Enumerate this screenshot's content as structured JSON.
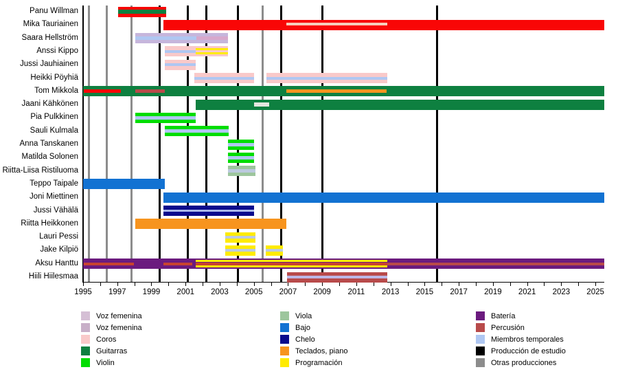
{
  "chart_data": {
    "type": "bar",
    "subtype": "gantt-timeline-band-members",
    "x_range": [
      1995,
      2025.5
    ],
    "x_ticks_labeled": [
      1995,
      1997,
      1999,
      2001,
      2003,
      2005,
      2007,
      2009,
      2011,
      2013,
      2015,
      2017,
      2019,
      2021,
      2023,
      2025
    ],
    "grid": "event-lines",
    "legend_position": "bottom",
    "colors": {
      "red": "#F90606",
      "green": "#0E8040",
      "brightgreen": "#00DD00",
      "viola": "#9DC69D",
      "blue": "#1272D2",
      "navy": "#0A0A8C",
      "orange": "#F7941E",
      "yellow": "#FFEB00",
      "purple": "#6B1B7E",
      "indianred": "#B84A4A",
      "lightblue": "#AFC7F2",
      "pink": "#F9C9C9",
      "thistle": "#C6B6DC",
      "mauve": "#D8A8CC",
      "palestripe": "#F6CDBB",
      "leave": "#E4E6DE",
      "brick": "#C8432F",
      "bluegray": "#BCCADE",
      "lavender": "#BDB7E6",
      "navystripe": "#AAB8EA",
      "voz1": "#D5BFD5",
      "voz2": "#C8AFC8",
      "black": "#000000",
      "gray": "#8C8C8C"
    },
    "members": [
      {
        "name": "Panu Willman",
        "segments": [
          {
            "s": 1997.05,
            "e": 1999.87,
            "c": "red",
            "stripes": [
              {
                "s": 1997.05,
                "e": 1999.87,
                "c": "green",
                "dy": 0,
                "h": 6
              }
            ]
          }
        ]
      },
      {
        "name": "Mika Tauriainen",
        "segments": [
          {
            "s": 1999.7,
            "e": 2025.5,
            "c": "red",
            "stripes": [
              {
                "s": 2006.9,
                "e": 2012.81,
                "c": "palestripe",
                "dy": -1,
                "h": 4
              }
            ]
          }
        ]
      },
      {
        "name": "Saara Hellström",
        "segments": [
          {
            "s": 1998.04,
            "e": 2003.47,
            "c": "thistle",
            "stripes": [
              {
                "s": 1998.04,
                "e": 2001.65,
                "c": "lightblue",
                "dy": 0,
                "h": 5
              },
              {
                "s": 2001.65,
                "e": 2003.47,
                "c": "mauve",
                "dy": 0,
                "h": 5
              }
            ]
          }
        ]
      },
      {
        "name": "Anssi Kippo",
        "segments": [
          {
            "s": 1999.78,
            "e": 2003.47,
            "c": "pink",
            "stripes": [
              {
                "s": 1999.78,
                "e": 2001.59,
                "c": "lightblue",
                "dy": 0,
                "h": 4
              },
              {
                "s": 2001.59,
                "e": 2003.47,
                "c": "yellow",
                "dy": -3,
                "h": 3
              },
              {
                "s": 2001.59,
                "e": 2003.47,
                "c": "yellow",
                "dy": 3,
                "h": 3
              }
            ]
          }
        ]
      },
      {
        "name": "Jussi Jauhiainen",
        "segments": [
          {
            "s": 1999.78,
            "e": 2001.59,
            "c": "pink",
            "stripes": [
              {
                "s": 1999.78,
                "e": 2001.59,
                "c": "lightblue",
                "dy": 0,
                "h": 4
              }
            ]
          }
        ]
      },
      {
        "name": "Heikki Pöyhiä",
        "segments": [
          {
            "s": 2001.51,
            "e": 2005.03,
            "c": "pink",
            "stripes": [
              {
                "s": 2001.51,
                "e": 2005.03,
                "c": "lightblue",
                "dy": 0,
                "h": 4
              }
            ]
          },
          {
            "s": 2005.74,
            "e": 2012.81,
            "c": "pink",
            "stripes": [
              {
                "s": 2005.74,
                "e": 2012.81,
                "c": "lightblue",
                "dy": 0,
                "h": 4
              }
            ]
          }
        ]
      },
      {
        "name": "Tom Mikkola",
        "segments": [
          {
            "s": 1995.0,
            "e": 2025.5,
            "c": "green",
            "stripes": [
              {
                "s": 1995.04,
                "e": 1997.21,
                "c": "red",
                "dy": 0,
                "h": 5
              },
              {
                "s": 1998.04,
                "e": 1999.78,
                "c": "indianred",
                "dy": 0,
                "h": 5
              },
              {
                "s": 2006.89,
                "e": 2012.77,
                "c": "orange",
                "dy": 0,
                "h": 5
              }
            ]
          }
        ]
      },
      {
        "name": "Jaani Kähkönen",
        "segments": [
          {
            "s": 2001.59,
            "e": 2025.5,
            "c": "green",
            "stripes": [
              {
                "s": 2005.01,
                "e": 2005.88,
                "c": "leave",
                "dy": 0,
                "h": 6
              }
            ]
          }
        ]
      },
      {
        "name": "Pia Pulkkinen",
        "segments": [
          {
            "s": 1998.04,
            "e": 2001.59,
            "c": "brightgreen",
            "stripes": [
              {
                "s": 1998.04,
                "e": 2001.59,
                "c": "lightblue",
                "dy": 0,
                "h": 5
              }
            ]
          }
        ]
      },
      {
        "name": "Sauli Kulmala",
        "segments": [
          {
            "s": 1999.78,
            "e": 2003.52,
            "c": "brightgreen",
            "stripes": [
              {
                "s": 1999.78,
                "e": 2003.52,
                "c": "lightblue",
                "dy": 0,
                "h": 5
              }
            ]
          }
        ]
      },
      {
        "name": "Anna Tanskanen",
        "segments": [
          {
            "s": 2003.47,
            "e": 2005.01,
            "c": "brightgreen",
            "stripes": [
              {
                "s": 2003.47,
                "e": 2005.01,
                "c": "lightblue",
                "dy": 0,
                "h": 5
              }
            ]
          }
        ]
      },
      {
        "name": "Matilda Solonen",
        "segments": [
          {
            "s": 2003.47,
            "e": 2005.01,
            "c": "brightgreen",
            "stripes": [
              {
                "s": 2003.47,
                "e": 2005.01,
                "c": "lightblue",
                "dy": 0,
                "h": 5
              }
            ]
          }
        ]
      },
      {
        "name": "Riitta-Liisa Ristiluoma",
        "segments": [
          {
            "s": 2003.47,
            "e": 2005.08,
            "c": "viola",
            "stripes": [
              {
                "s": 2003.47,
                "e": 2005.08,
                "c": "bluegray",
                "dy": 0,
                "h": 5
              }
            ]
          }
        ]
      },
      {
        "name": "Teppo Taipale",
        "segments": [
          {
            "s": 1995.0,
            "e": 1999.8,
            "c": "blue",
            "stripes": []
          }
        ]
      },
      {
        "name": "Joni Miettinen",
        "segments": [
          {
            "s": 1999.7,
            "e": 2025.5,
            "c": "blue",
            "stripes": []
          }
        ]
      },
      {
        "name": "Jussi Vähälä",
        "segments": [
          {
            "s": 1999.7,
            "e": 2005.01,
            "c": "navy",
            "stripes": [
              {
                "s": 1999.7,
                "e": 2005.01,
                "c": "navystripe",
                "dy": 0,
                "h": 3
              }
            ]
          }
        ]
      },
      {
        "name": "Riitta Heikkonen",
        "segments": [
          {
            "s": 1998.04,
            "e": 2006.89,
            "c": "orange",
            "stripes": []
          }
        ]
      },
      {
        "name": "Lauri Pessi",
        "segments": [
          {
            "s": 2003.34,
            "e": 2005.08,
            "c": "yellow",
            "stripes": [
              {
                "s": 2003.34,
                "e": 2005.08,
                "c": "bluegray",
                "dy": 0,
                "h": 4
              }
            ]
          }
        ]
      },
      {
        "name": "Jake Kilpiö",
        "segments": [
          {
            "s": 2003.34,
            "e": 2005.08,
            "c": "yellow",
            "stripes": [
              {
                "s": 2003.34,
                "e": 2005.08,
                "c": "bluegray",
                "dy": 0,
                "h": 4
              }
            ]
          },
          {
            "s": 2005.68,
            "e": 2006.69,
            "c": "yellow",
            "stripes": [
              {
                "s": 2005.68,
                "e": 2006.69,
                "c": "bluegray",
                "dy": 0,
                "h": 4
              }
            ]
          }
        ]
      },
      {
        "name": "Aksu Hanttu",
        "segments": [
          {
            "s": 1995.0,
            "e": 2025.5,
            "c": "purple",
            "stripes": [
              {
                "s": 1995.04,
                "e": 1997.98,
                "c": "brick",
                "dy": 0,
                "h": 4
              },
              {
                "s": 1999.7,
                "e": 2001.39,
                "c": "brick",
                "dy": 0,
                "h": 4
              },
              {
                "s": 2001.59,
                "e": 2012.81,
                "c": "yellow",
                "dy": -4,
                "h": 3
              },
              {
                "s": 2001.59,
                "e": 2012.81,
                "c": "yellow",
                "dy": 4,
                "h": 3
              },
              {
                "s": 2001.59,
                "e": 2012.81,
                "c": "brick",
                "dy": 0,
                "h": 4
              },
              {
                "s": 2012.81,
                "e": 2025.5,
                "c": "indianred",
                "dy": 0,
                "h": 4
              }
            ]
          }
        ]
      },
      {
        "name": "Hiili Hiilesmaa",
        "segments": [
          {
            "s": 2006.94,
            "e": 2012.81,
            "c": "indianred",
            "stripes": [
              {
                "s": 2006.94,
                "e": 2012.81,
                "c": "lavender",
                "dy": 0,
                "h": 4
              }
            ]
          }
        ]
      }
    ],
    "event_lines": {
      "studio_albums": [
        1999.5,
        2001.15,
        2002.2,
        2004.05,
        2006.62,
        2009.0,
        2015.71
      ],
      "other_productions": [
        1995.36,
        1996.37,
        1997.85,
        2005.51
      ]
    },
    "legend": {
      "columns": [
        [
          {
            "label": "Voz femenina",
            "c": "voz1"
          },
          {
            "label": "Voz femenina",
            "c": "voz2"
          },
          {
            "label": "Coros",
            "c": "pink"
          },
          {
            "label": "Guitarras",
            "c": "green"
          },
          {
            "label": "Violin",
            "c": "brightgreen"
          }
        ],
        [
          {
            "label": "Viola",
            "c": "viola"
          },
          {
            "label": "Bajo",
            "c": "blue"
          },
          {
            "label": "Chelo",
            "c": "navy"
          },
          {
            "label": "Teclados, piano",
            "c": "orange"
          },
          {
            "label": "Programación",
            "c": "yellow"
          }
        ],
        [
          {
            "label": "Batería",
            "c": "purple"
          },
          {
            "label": "Percusión",
            "c": "indianred"
          },
          {
            "label": "Miembros temporales",
            "c": "lightblue"
          },
          {
            "label": "Producción de estudio",
            "c": "black"
          },
          {
            "label": "Otras producciones",
            "c": "gray"
          }
        ]
      ]
    }
  }
}
